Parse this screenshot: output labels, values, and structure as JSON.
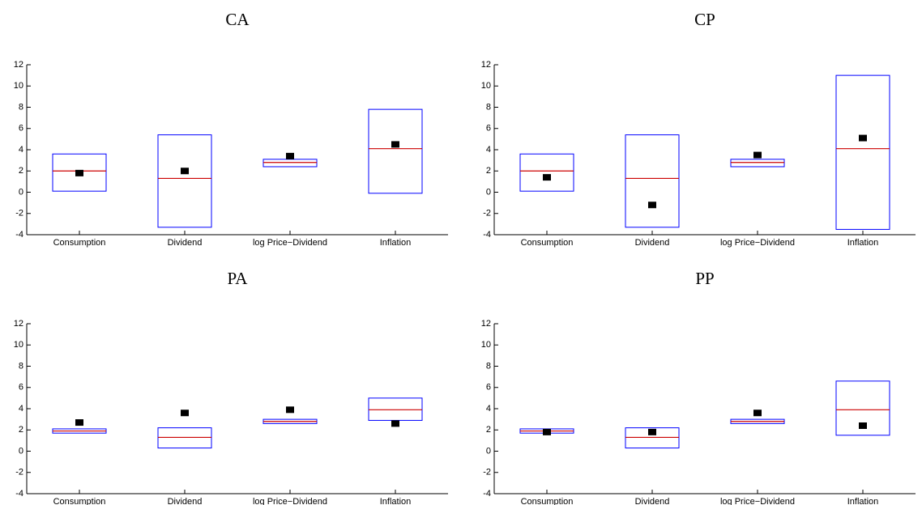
{
  "chart_data": [
    {
      "type": "box",
      "title": "CA",
      "categories": [
        "Consumption",
        "Dividend",
        "log Price−Dividend",
        "Inflation"
      ],
      "high": [
        3.6,
        5.4,
        3.1,
        7.8
      ],
      "low": [
        0.1,
        -3.3,
        2.4,
        -0.1
      ],
      "median": [
        2.0,
        1.3,
        2.8,
        4.1
      ],
      "estimate": [
        1.8,
        2.0,
        3.4,
        4.5
      ],
      "box_color": "#0000ff",
      "median_color": "#cc0000",
      "marker_color": "#000000",
      "ylim": [
        -4,
        12
      ],
      "yticks": [
        -4,
        -2,
        0,
        2,
        4,
        6,
        8,
        10,
        12
      ]
    },
    {
      "type": "box",
      "title": "CP",
      "categories": [
        "Consumption",
        "Dividend",
        "log Price−Dividend",
        "Inflation"
      ],
      "high": [
        3.6,
        5.4,
        3.1,
        11.0
      ],
      "low": [
        0.1,
        -3.3,
        2.4,
        -3.5
      ],
      "median": [
        2.0,
        1.3,
        2.8,
        4.1
      ],
      "estimate": [
        1.4,
        -1.2,
        3.5,
        5.1
      ],
      "box_color": "#0000ff",
      "median_color": "#cc0000",
      "marker_color": "#000000",
      "ylim": [
        -4,
        12
      ],
      "yticks": [
        -4,
        -2,
        0,
        2,
        4,
        6,
        8,
        10,
        12
      ]
    },
    {
      "type": "box",
      "title": "PA",
      "categories": [
        "Consumption",
        "Dividend",
        "log Price−Dividend",
        "Inflation"
      ],
      "high": [
        2.1,
        2.2,
        3.0,
        5.0
      ],
      "low": [
        1.7,
        0.3,
        2.6,
        2.9
      ],
      "median": [
        1.9,
        1.3,
        2.8,
        3.9
      ],
      "estimate": [
        2.7,
        3.6,
        3.9,
        2.6
      ],
      "box_color": "#0000ff",
      "median_color": "#cc0000",
      "marker_color": "#000000",
      "ylim": [
        -4,
        12
      ],
      "yticks": [
        -4,
        -2,
        0,
        2,
        4,
        6,
        8,
        10,
        12
      ]
    },
    {
      "type": "box",
      "title": "PP",
      "categories": [
        "Consumption",
        "Dividend",
        "log Price−Dividend",
        "Inflation"
      ],
      "high": [
        2.1,
        2.2,
        3.0,
        6.6
      ],
      "low": [
        1.7,
        0.3,
        2.6,
        1.5
      ],
      "median": [
        1.9,
        1.3,
        2.8,
        3.9
      ],
      "estimate": [
        1.8,
        1.8,
        3.6,
        2.4
      ],
      "box_color": "#0000ff",
      "median_color": "#cc0000",
      "marker_color": "#000000",
      "ylim": [
        -4,
        12
      ],
      "yticks": [
        -4,
        -2,
        0,
        2,
        4,
        6,
        8,
        10,
        12
      ]
    }
  ]
}
